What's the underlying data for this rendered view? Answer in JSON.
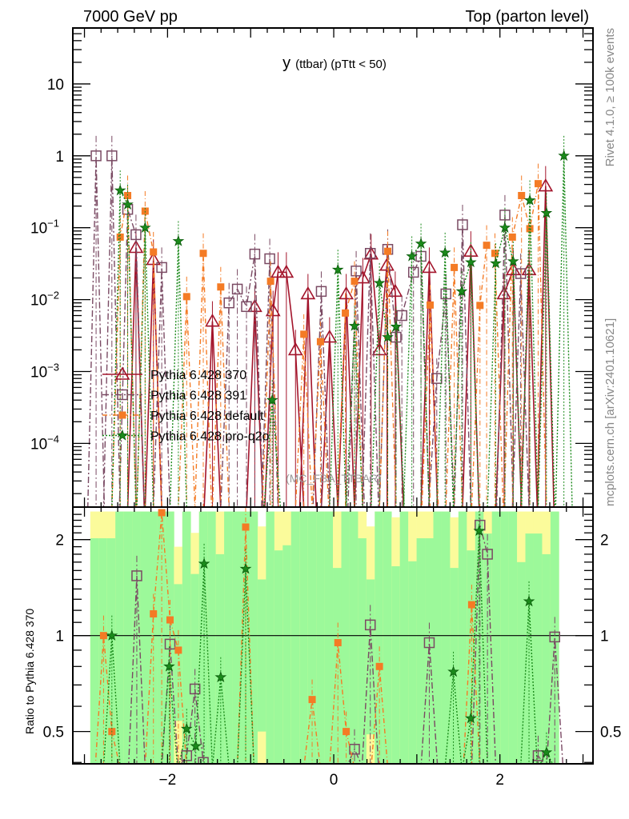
{
  "header": {
    "left": "7000 GeV pp",
    "right": "Top (parton level)"
  },
  "side": {
    "rivet": "Rivet 4.1.0, ≥ 100k events",
    "mcplots": "mcplots.cern.ch [arXiv:2401.10621]"
  },
  "colors": {
    "s370": "#a3142b",
    "s391": "#7a4a63",
    "default": "#f47b25",
    "proq2o": "#1b8a1b",
    "band_green": "#9cf99a",
    "band_yellow": "#fbfb9b"
  },
  "chart_data": [
    {
      "type": "line",
      "title_main": "y",
      "title_sub": "(ttbar)  (pTtt < 50)",
      "watermark": "(MC_FBA_TTBAR)",
      "xlabel": "",
      "ylabel": "",
      "xlim": [
        -3.14,
        3.12
      ],
      "yscale": "log",
      "ylim": [
        1.3e-05,
        60
      ],
      "yticks": [
        {
          "value": 10,
          "label": "10",
          "exp": ""
        },
        {
          "value": 1,
          "label": "1",
          "exp": ""
        },
        {
          "value": 0.1,
          "label": "10",
          "exp": "−1"
        },
        {
          "value": 0.01,
          "label": "10",
          "exp": "−2"
        },
        {
          "value": 0.001,
          "label": "10",
          "exp": "−3"
        },
        {
          "value": 0.0001,
          "label": "10",
          "exp": "−4"
        }
      ],
      "legend_position": "center-left",
      "series": [
        {
          "name": "Pythia 6.428 370",
          "key": "s370",
          "marker": "triangle",
          "style": "solid",
          "points": [
            [
              -2.38,
              0.053
            ],
            [
              -2.17,
              0.036
            ],
            [
              -1.46,
              0.005
            ],
            [
              -0.95,
              0.008
            ],
            [
              -0.73,
              0.007
            ],
            [
              -0.67,
              0.024
            ],
            [
              -0.57,
              0.024
            ],
            [
              -0.46,
              0.002
            ],
            [
              -0.31,
              0.012
            ],
            [
              -0.05,
              0.003
            ],
            [
              0.15,
              0.012
            ],
            [
              0.35,
              0.02
            ],
            [
              0.45,
              0.043
            ],
            [
              0.55,
              0.002
            ],
            [
              0.64,
              0.03
            ],
            [
              0.74,
              0.013
            ],
            [
              1.15,
              0.028
            ],
            [
              1.65,
              0.047
            ],
            [
              2.05,
              0.012
            ],
            [
              2.16,
              0.026
            ],
            [
              2.35,
              0.026
            ],
            [
              2.55,
              0.38
            ]
          ]
        },
        {
          "name": "Pythia 6.428 391",
          "key": "s391",
          "marker": "square",
          "style": "dashdot",
          "points": [
            [
              -2.86,
              1.0
            ],
            [
              -2.67,
              1.0
            ],
            [
              -2.48,
              0.18
            ],
            [
              -2.38,
              0.08
            ],
            [
              -2.07,
              0.028
            ],
            [
              -1.26,
              0.009
            ],
            [
              -1.16,
              0.014
            ],
            [
              -1.05,
              0.008
            ],
            [
              -0.95,
              0.043
            ],
            [
              -0.77,
              0.037
            ],
            [
              -0.15,
              0.013
            ],
            [
              0.27,
              0.025
            ],
            [
              0.44,
              0.044
            ],
            [
              0.65,
              0.05
            ],
            [
              0.75,
              0.003
            ],
            [
              0.82,
              0.006
            ],
            [
              0.96,
              0.024
            ],
            [
              1.05,
              0.04
            ],
            [
              1.24,
              0.0008
            ],
            [
              1.35,
              0.012
            ],
            [
              1.55,
              0.11
            ],
            [
              2.06,
              0.15
            ],
            [
              2.25,
              0.023
            ]
          ]
        },
        {
          "name": "Pythia 6.428 default",
          "key": "default",
          "marker": "filled-square",
          "style": "dashdot2",
          "points": [
            [
              -2.57,
              0.074
            ],
            [
              -2.48,
              0.28
            ],
            [
              -2.27,
              0.17
            ],
            [
              -2.17,
              0.046
            ],
            [
              -1.77,
              0.011
            ],
            [
              -1.57,
              0.044
            ],
            [
              -1.36,
              0.015
            ],
            [
              -0.76,
              0.018
            ],
            [
              -0.36,
              0.0033
            ],
            [
              -0.16,
              0.0026
            ],
            [
              0.14,
              0.0065
            ],
            [
              0.25,
              0.018
            ],
            [
              0.65,
              0.047
            ],
            [
              1.16,
              0.0084
            ],
            [
              1.45,
              0.028
            ],
            [
              1.76,
              0.0083
            ],
            [
              1.84,
              0.057
            ],
            [
              1.94,
              0.044
            ],
            [
              2.15,
              0.074
            ],
            [
              2.26,
              0.28
            ],
            [
              2.36,
              0.097
            ],
            [
              2.46,
              0.41
            ]
          ]
        },
        {
          "name": "Pythia 6.428 pro-q2o",
          "key": "proq2o",
          "marker": "star",
          "style": "dotted",
          "points": [
            [
              -2.57,
              0.33
            ],
            [
              -2.48,
              0.21
            ],
            [
              -2.27,
              0.1
            ],
            [
              -1.87,
              0.065
            ],
            [
              -0.74,
              0.0004
            ],
            [
              0.05,
              0.026
            ],
            [
              0.25,
              0.0043
            ],
            [
              0.55,
              0.017
            ],
            [
              0.65,
              0.003
            ],
            [
              0.75,
              0.0042
            ],
            [
              0.94,
              0.04
            ],
            [
              1.05,
              0.06
            ],
            [
              1.34,
              0.045
            ],
            [
              1.54,
              0.013
            ],
            [
              1.65,
              0.033
            ],
            [
              1.95,
              0.032
            ],
            [
              2.06,
              0.1
            ],
            [
              2.16,
              0.034
            ],
            [
              2.36,
              0.24
            ],
            [
              2.56,
              0.16
            ],
            [
              2.77,
              1.0
            ]
          ]
        }
      ]
    },
    {
      "type": "line",
      "ylabel": "Ratio to Pythia 6.428 370",
      "yscale": "log",
      "ylim": [
        0.396,
        2.53
      ],
      "xlim": [
        -3.14,
        3.12
      ],
      "xticks": [
        {
          "value": -2,
          "label": "−2"
        },
        {
          "value": 0,
          "label": "0"
        },
        {
          "value": 2,
          "label": "2"
        }
      ],
      "yticks": [
        {
          "value": 2,
          "label": "2"
        },
        {
          "value": 1,
          "label": "1"
        },
        {
          "value": 0.5,
          "label": "0.5"
        }
      ],
      "band": {
        "x_start": -2.93,
        "bin_width": 0.1007,
        "green_high": [
          2.02,
          2.02,
          2.02,
          2.45,
          2.45,
          2.45,
          2.45,
          2.45,
          2.45,
          2.45,
          1.45,
          2.45,
          1.56,
          2.45,
          2.45,
          1.8,
          2.45,
          2.45,
          2.45,
          2.45,
          1.5,
          2.45,
          1.85,
          1.92,
          2.45,
          2.45,
          2.45,
          2.45,
          2.45,
          1.63,
          2.45,
          2.45,
          2.02,
          1.5,
          2.45,
          2.45,
          1.65,
          2.45,
          1.71,
          2.02,
          2.02,
          2.45,
          2.45,
          1.63,
          2.45,
          1.85,
          2.45,
          2.09,
          2.45,
          2.45,
          2.45,
          1.7,
          2.09,
          2.09,
          1.8,
          2.45
        ],
        "green_low_exceptions": {
          "10": 0.54,
          "20": 0.5,
          "33": 0.49
        },
        "yellow_high_exceptions": {
          "10": 1.9,
          "12": 2.1,
          "20": 2.2,
          "33": 2.2,
          "36": 2.35,
          "43": 2.35
        }
      },
      "series": [
        {
          "key": "s391",
          "marker": "square",
          "style": "dashdot",
          "points": [
            [
              -2.37,
              1.54
            ],
            [
              -1.97,
              0.94
            ],
            [
              -1.77,
              0.42
            ],
            [
              -1.67,
              0.68
            ],
            [
              -1.57,
              0.4
            ],
            [
              0.25,
              0.44
            ],
            [
              0.44,
              1.08
            ],
            [
              1.15,
              0.95
            ],
            [
              1.76,
              2.22
            ],
            [
              1.85,
              1.8
            ],
            [
              2.46,
              0.42
            ],
            [
              2.66,
              0.99
            ]
          ]
        },
        {
          "key": "default",
          "marker": "filled-square",
          "style": "dashdot2",
          "points": [
            [
              -2.77,
              1.0
            ],
            [
              -2.67,
              0.5
            ],
            [
              -2.17,
              1.17
            ],
            [
              -2.07,
              2.43
            ],
            [
              -1.97,
              1.12
            ],
            [
              -1.87,
              0.9
            ],
            [
              -1.06,
              2.19
            ],
            [
              -0.26,
              0.63
            ],
            [
              0.05,
              0.95
            ],
            [
              0.15,
              0.5
            ],
            [
              0.55,
              0.8
            ],
            [
              1.66,
              1.25
            ]
          ]
        },
        {
          "key": "proq2o",
          "marker": "star",
          "style": "dotted",
          "points": [
            [
              -2.67,
              1.0
            ],
            [
              -1.98,
              0.8
            ],
            [
              -1.77,
              0.51
            ],
            [
              -1.66,
              0.45
            ],
            [
              -1.56,
              1.68
            ],
            [
              -1.36,
              0.74
            ],
            [
              -1.06,
              1.62
            ],
            [
              1.44,
              0.77
            ],
            [
              1.65,
              0.55
            ],
            [
              1.75,
              2.13
            ],
            [
              2.35,
              1.28
            ],
            [
              2.56,
              0.43
            ]
          ]
        }
      ]
    }
  ]
}
